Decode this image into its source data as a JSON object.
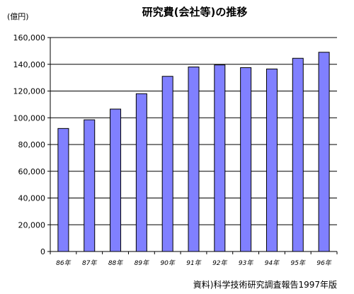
{
  "chart_data": {
    "type": "bar",
    "title": "研究費(会社等)の推移",
    "unit_label": "(億円)",
    "source": "資料)科学技術研究調査報告1997年版",
    "categories": [
      "86年",
      "87年",
      "88年",
      "89年",
      "90年",
      "91年",
      "92年",
      "93年",
      "94年",
      "95年",
      "96年"
    ],
    "values": [
      92000,
      98500,
      106500,
      118000,
      131000,
      138000,
      139500,
      137500,
      136500,
      144500,
      149000
    ],
    "ylim": [
      0,
      160000
    ],
    "yticks": [
      "0",
      "20,000",
      "40,000",
      "60,000",
      "80,000",
      "100,000",
      "120,000",
      "140,000",
      "160,000"
    ],
    "ytick_values": [
      0,
      20000,
      40000,
      60000,
      80000,
      100000,
      120000,
      140000,
      160000
    ],
    "grid": true,
    "colors": {
      "bar_fill": "#8080ff",
      "bar_stroke": "#000000",
      "grid": "#000000",
      "axis": "#000000"
    }
  }
}
